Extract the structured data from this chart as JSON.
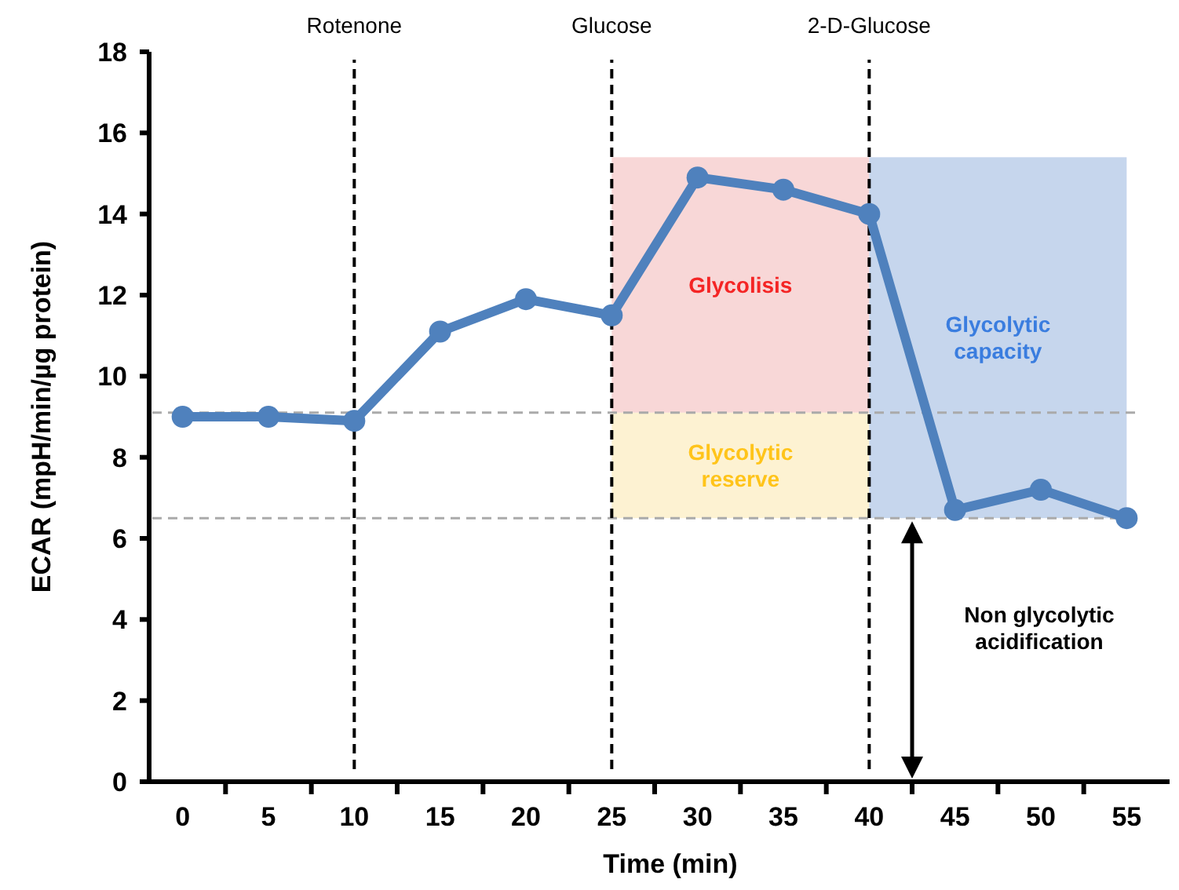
{
  "chart_data": {
    "type": "line",
    "xlabel": "Time (min)",
    "ylabel": "ECAR (mpH/min/µg protein)",
    "x": [
      0,
      5,
      10,
      15,
      20,
      25,
      30,
      35,
      40,
      45,
      50,
      55
    ],
    "series": [
      {
        "color": "#4f81bd",
        "values": [
          9.0,
          9.0,
          8.9,
          11.1,
          11.9,
          11.5,
          14.9,
          14.6,
          14.0,
          6.7,
          7.2,
          6.5
        ]
      }
    ],
    "xlim": [
      -2.5,
      57.5
    ],
    "xticks": [
      0,
      {
        "value": 2.5,
        "label": null
      },
      5,
      {
        "value": 7.5,
        "label": null
      },
      10,
      {
        "value": 12.5,
        "label": null
      },
      15,
      {
        "value": 17.5,
        "label": null
      },
      20,
      {
        "value": 22.5,
        "label": null
      },
      25,
      {
        "value": 27.5,
        "label": null
      },
      30,
      {
        "value": 32.5,
        "label": null
      },
      35,
      {
        "value": 37.5,
        "label": null
      },
      40,
      {
        "value": 42.5,
        "label": null
      },
      45,
      {
        "value": 47.5,
        "label": null
      },
      50,
      {
        "value": 52.5,
        "label": null
      },
      55
    ],
    "ylim": [
      0,
      18
    ],
    "yticks": [
      0,
      2,
      4,
      6,
      8,
      10,
      12,
      14,
      16,
      18
    ],
    "marker": "circle",
    "line_style": "solid",
    "grid": false,
    "ref_lines": [
      {
        "axis": "x",
        "value": 10,
        "label": "Rotenone",
        "color": "#000000",
        "line_style": "dashed"
      },
      {
        "axis": "x",
        "value": 25,
        "label": "Glucose",
        "color": "#000000",
        "line_style": "dashed"
      },
      {
        "axis": "x",
        "value": 40,
        "label": "2-D-Glucose",
        "color": "#000000",
        "line_style": "dashed"
      },
      {
        "axis": "y",
        "value": 9.1,
        "color": "#aaaaaa",
        "line_style": "dashed"
      },
      {
        "axis": "y",
        "value": 6.5,
        "color": "#aaaaaa",
        "line_style": "dashed"
      }
    ],
    "bands": [
      {
        "axis": "y",
        "from": 9.1,
        "to": 15.4,
        "label": "Glycolisis",
        "color": "#f8d7d7"
      },
      {
        "axis": "y",
        "from": 6.5,
        "to": 9.1,
        "label": "Glycolytic reserve",
        "color": "#fdf2d2"
      },
      {
        "axis": "y",
        "from": 6.5,
        "to": 15.4,
        "label": "Glycolytic capacity",
        "color": "#c6d6ed"
      }
    ],
    "annotations": [
      "Non glycolytic acidification"
    ]
  }
}
